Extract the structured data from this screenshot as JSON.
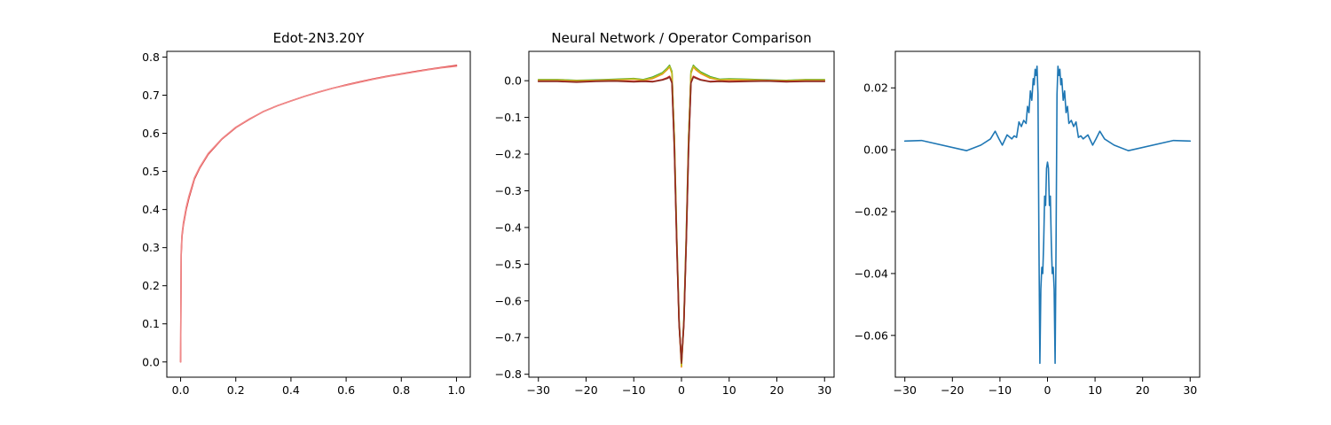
{
  "chart_data": [
    {
      "type": "line",
      "title": "Edot-2N3.20Y",
      "xlim": [
        -0.05,
        1.05
      ],
      "ylim": [
        -0.04,
        0.815
      ],
      "xticks": [
        0.0,
        0.2,
        0.4,
        0.6,
        0.8,
        1.0
      ],
      "xtick_labels": [
        "0.0",
        "0.2",
        "0.4",
        "0.6",
        "0.8",
        "1.0"
      ],
      "yticks": [
        0.0,
        0.1,
        0.2,
        0.3,
        0.4,
        0.5,
        0.6,
        0.7,
        0.8
      ],
      "ytick_labels": [
        "0.0",
        "0.1",
        "0.2",
        "0.3",
        "0.4",
        "0.5",
        "0.6",
        "0.7",
        "0.8"
      ],
      "grid": false,
      "series": [
        {
          "color": "#d62728",
          "x": [
            0.0,
            0.002,
            0.005,
            0.01,
            0.02,
            0.03,
            0.05,
            0.07,
            0.1,
            0.15,
            0.2,
            0.25,
            0.3,
            0.35,
            0.4,
            0.45,
            0.5,
            0.55,
            0.6,
            0.65,
            0.7,
            0.75,
            0.8,
            0.85,
            0.9,
            0.95,
            1.0
          ],
          "y": [
            0.0,
            0.28,
            0.33,
            0.36,
            0.4,
            0.43,
            0.48,
            0.51,
            0.545,
            0.585,
            0.615,
            0.637,
            0.657,
            0.672,
            0.685,
            0.697,
            0.708,
            0.718,
            0.727,
            0.735,
            0.743,
            0.75,
            0.756,
            0.762,
            0.768,
            0.773,
            0.778
          ]
        },
        {
          "color": "#f08a8a",
          "x": [
            0.0,
            0.002,
            0.005,
            0.01,
            0.02,
            0.03,
            0.05,
            0.07,
            0.1,
            0.15,
            0.2,
            0.25,
            0.3,
            0.35,
            0.4,
            0.45,
            0.5,
            0.55,
            0.6,
            0.65,
            0.7,
            0.75,
            0.8,
            0.85,
            0.9,
            0.95,
            1.0
          ],
          "y": [
            0.0,
            0.29,
            0.335,
            0.365,
            0.405,
            0.435,
            0.483,
            0.512,
            0.547,
            0.586,
            0.616,
            0.638,
            0.657,
            0.672,
            0.685,
            0.697,
            0.708,
            0.718,
            0.726,
            0.734,
            0.742,
            0.749,
            0.755,
            0.761,
            0.767,
            0.772,
            0.776
          ]
        }
      ]
    },
    {
      "type": "line",
      "title": "Neural Network / Operator Comparison",
      "xlim": [
        -32,
        32
      ],
      "ylim": [
        -0.808,
        0.08
      ],
      "xticks": [
        -30,
        -20,
        -10,
        0,
        10,
        20,
        30
      ],
      "xtick_labels": [
        "−30",
        "−20",
        "−10",
        "0",
        "10",
        "20",
        "30"
      ],
      "yticks": [
        0.0,
        -0.1,
        -0.2,
        -0.3,
        -0.4,
        -0.5,
        -0.6,
        -0.7,
        -0.8
      ],
      "ytick_labels": [
        "0.0",
        "−0.1",
        "−0.2",
        "−0.3",
        "−0.4",
        "−0.5",
        "−0.6",
        "−0.7",
        "−0.8"
      ],
      "grid": false,
      "series": [
        {
          "color": "#2ca02c",
          "x": [
            -30,
            -26,
            -22,
            -18,
            -14,
            -10,
            -8,
            -6,
            -4,
            -3,
            -2.5,
            -2,
            -1.5,
            -1,
            -0.5,
            0,
            0.5,
            1,
            1.5,
            2,
            2.5,
            3,
            4,
            6,
            8,
            10,
            14,
            18,
            22,
            26,
            30
          ],
          "y": [
            0.003,
            0.003,
            0.001,
            0.002,
            0.004,
            0.006,
            0.003,
            0.01,
            0.022,
            0.034,
            0.042,
            0.025,
            -0.15,
            -0.42,
            -0.65,
            -0.775,
            -0.65,
            -0.42,
            -0.15,
            0.025,
            0.042,
            0.035,
            0.024,
            0.011,
            0.004,
            0.005,
            0.004,
            0.002,
            0.001,
            0.003,
            0.003
          ]
        },
        {
          "color": "#ff7f0e",
          "x": [
            -30,
            -26,
            -22,
            -18,
            -14,
            -10,
            -8,
            -6,
            -4,
            -3,
            -2.5,
            -2,
            -1.5,
            -1,
            -0.5,
            0,
            0.5,
            1,
            1.5,
            2,
            2.5,
            3,
            4,
            6,
            8,
            10,
            14,
            18,
            22,
            26,
            30
          ],
          "y": [
            0.002,
            0.002,
            0.0,
            0.001,
            0.002,
            0.004,
            0.001,
            0.006,
            0.018,
            0.03,
            0.038,
            0.02,
            -0.16,
            -0.43,
            -0.66,
            -0.78,
            -0.66,
            -0.43,
            -0.16,
            0.02,
            0.038,
            0.03,
            0.02,
            0.007,
            0.002,
            0.003,
            0.002,
            0.001,
            0.0,
            0.002,
            0.002
          ]
        },
        {
          "color": "#bcbd22",
          "x": [
            -30,
            -26,
            -22,
            -18,
            -14,
            -10,
            -8,
            -6,
            -4,
            -3,
            -2.5,
            -2,
            -1.5,
            -1,
            -0.5,
            0,
            0.5,
            1,
            1.5,
            2,
            2.5,
            3,
            4,
            6,
            8,
            10,
            14,
            18,
            22,
            26,
            30
          ],
          "y": [
            0.002,
            0.002,
            0.0,
            0.001,
            0.003,
            0.005,
            0.002,
            0.008,
            0.02,
            0.032,
            0.04,
            0.022,
            -0.155,
            -0.425,
            -0.655,
            -0.777,
            -0.655,
            -0.425,
            -0.155,
            0.022,
            0.04,
            0.033,
            0.022,
            0.009,
            0.003,
            0.004,
            0.003,
            0.001,
            0.0,
            0.002,
            0.002
          ]
        },
        {
          "color": "#d62728",
          "x": [
            -30,
            -26,
            -22,
            -18,
            -14,
            -10,
            -8,
            -6,
            -4,
            -3,
            -2.5,
            -2,
            -1.5,
            -1,
            -0.5,
            0,
            0.5,
            1,
            1.5,
            2,
            2.5,
            3,
            4,
            6,
            8,
            10,
            14,
            18,
            22,
            26,
            30
          ],
          "y": [
            -0.001,
            -0.001,
            -0.003,
            -0.001,
            0.0,
            -0.002,
            -0.001,
            -0.002,
            0.003,
            0.008,
            0.012,
            -0.004,
            -0.18,
            -0.44,
            -0.66,
            -0.765,
            -0.66,
            -0.44,
            -0.18,
            -0.004,
            0.012,
            0.009,
            0.003,
            -0.002,
            -0.001,
            -0.002,
            -0.001,
            0.0,
            -0.002,
            -0.001,
            -0.001
          ]
        },
        {
          "color": "#8c2d22",
          "x": [
            -30,
            -26,
            -22,
            -18,
            -14,
            -10,
            -8,
            -6,
            -4,
            -3,
            -2.5,
            -2,
            -1.5,
            -1,
            -0.5,
            0,
            0.5,
            1,
            1.5,
            2,
            2.5,
            3,
            4,
            6,
            8,
            10,
            14,
            18,
            22,
            26,
            30
          ],
          "y": [
            -0.002,
            -0.002,
            -0.004,
            -0.002,
            -0.001,
            -0.003,
            -0.002,
            -0.003,
            0.002,
            0.006,
            0.01,
            -0.006,
            -0.185,
            -0.445,
            -0.665,
            -0.77,
            -0.665,
            -0.445,
            -0.185,
            -0.006,
            0.01,
            0.007,
            0.002,
            -0.003,
            -0.002,
            -0.003,
            -0.002,
            -0.001,
            -0.003,
            -0.002,
            -0.002
          ]
        }
      ]
    },
    {
      "type": "line",
      "title": "",
      "xlim": [
        -32,
        32
      ],
      "ylim": [
        -0.0735,
        0.0318
      ],
      "xticks": [
        -30,
        -20,
        -10,
        0,
        10,
        20,
        30
      ],
      "xtick_labels": [
        "−30",
        "−20",
        "−10",
        "0",
        "10",
        "20",
        "30"
      ],
      "yticks": [
        0.02,
        0.0,
        -0.02,
        -0.04,
        -0.06
      ],
      "ytick_labels": [
        "0.02",
        "0.00",
        "−0.02",
        "−0.04",
        "−0.06"
      ],
      "grid": false,
      "series": [
        {
          "color": "#1f77b4",
          "x": [
            -30,
            -26.5,
            -17,
            -14,
            -12,
            -11,
            -10.2,
            -9.5,
            -8.5,
            -7.5,
            -7,
            -6.5,
            -6,
            -5.5,
            -5,
            -4.5,
            -4.2,
            -3.9,
            -3.6,
            -3.3,
            -3.0,
            -2.8,
            -2.6,
            -2.4,
            -2.2,
            -2.0,
            -1.8,
            -1.6,
            -1.4,
            -1.2,
            -1.0,
            -0.8,
            -0.6,
            -0.4,
            -0.2,
            0.0,
            0.2,
            0.4,
            0.6,
            0.8,
            1.0,
            1.2,
            1.4,
            1.6,
            1.8,
            2.0,
            2.2,
            2.4,
            2.6,
            2.8,
            3.0,
            3.3,
            3.6,
            3.9,
            4.2,
            4.5,
            5,
            5.5,
            6,
            6.5,
            7,
            7.5,
            8.5,
            9.5,
            10.2,
            11,
            12,
            14,
            17,
            26.5,
            30
          ],
          "y": [
            0.0028,
            0.003,
            -0.0003,
            0.0015,
            0.0035,
            0.006,
            0.0035,
            0.0015,
            0.0048,
            0.0035,
            0.0045,
            0.004,
            0.009,
            0.0075,
            0.0095,
            0.0085,
            0.014,
            0.012,
            0.019,
            0.016,
            0.023,
            0.021,
            0.026,
            0.024,
            0.027,
            0.018,
            -0.03,
            -0.069,
            -0.045,
            -0.038,
            -0.04,
            -0.03,
            -0.015,
            -0.018,
            -0.006,
            -0.004,
            -0.006,
            -0.018,
            -0.015,
            -0.03,
            -0.04,
            -0.038,
            -0.045,
            -0.069,
            -0.03,
            0.018,
            0.027,
            0.024,
            0.026,
            0.021,
            0.023,
            0.016,
            0.019,
            0.012,
            0.014,
            0.0085,
            0.0095,
            0.0075,
            0.009,
            0.004,
            0.0045,
            0.0035,
            0.0048,
            0.0015,
            0.0035,
            0.006,
            0.0035,
            0.0015,
            -0.0003,
            0.003,
            0.0028
          ]
        }
      ]
    }
  ]
}
